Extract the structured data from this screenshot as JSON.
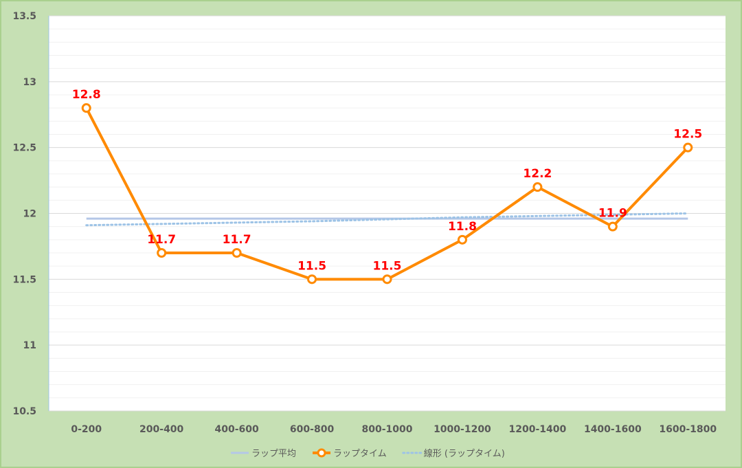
{
  "chart_data": {
    "type": "line",
    "categories": [
      "0-200",
      "200-400",
      "400-600",
      "600-800",
      "800-1000",
      "1000-1200",
      "1200-1400",
      "1400-1600",
      "1600-1800"
    ],
    "series": [
      {
        "name": "ラップ平均",
        "kind": "average",
        "values": [
          11.96,
          11.96,
          11.96,
          11.96,
          11.96,
          11.96,
          11.96,
          11.96,
          11.96
        ],
        "color": "#b4c7e7"
      },
      {
        "name": "ラップタイム",
        "kind": "line",
        "values": [
          12.8,
          11.7,
          11.7,
          11.5,
          11.5,
          11.8,
          12.2,
          11.9,
          12.5
        ],
        "color": "#ff8a00"
      },
      {
        "name": "線形 (ラップタイム)",
        "kind": "trend",
        "values": [
          11.91,
          11.92,
          11.93,
          11.94,
          11.955,
          11.97,
          11.98,
          11.99,
          12.0
        ],
        "color": "#9dc3e6"
      }
    ],
    "data_labels": [
      "12.8",
      "11.7",
      "11.7",
      "11.5",
      "11.5",
      "11.8",
      "12.2",
      "11.9",
      "12.5"
    ],
    "y_ticks": [
      "10.5",
      "11",
      "11.5",
      "12",
      "12.5",
      "13",
      "13.5"
    ],
    "ylim": [
      10.5,
      13.5
    ],
    "grid": true,
    "legend_position": "bottom",
    "title": "",
    "xlabel": "",
    "ylabel": ""
  }
}
